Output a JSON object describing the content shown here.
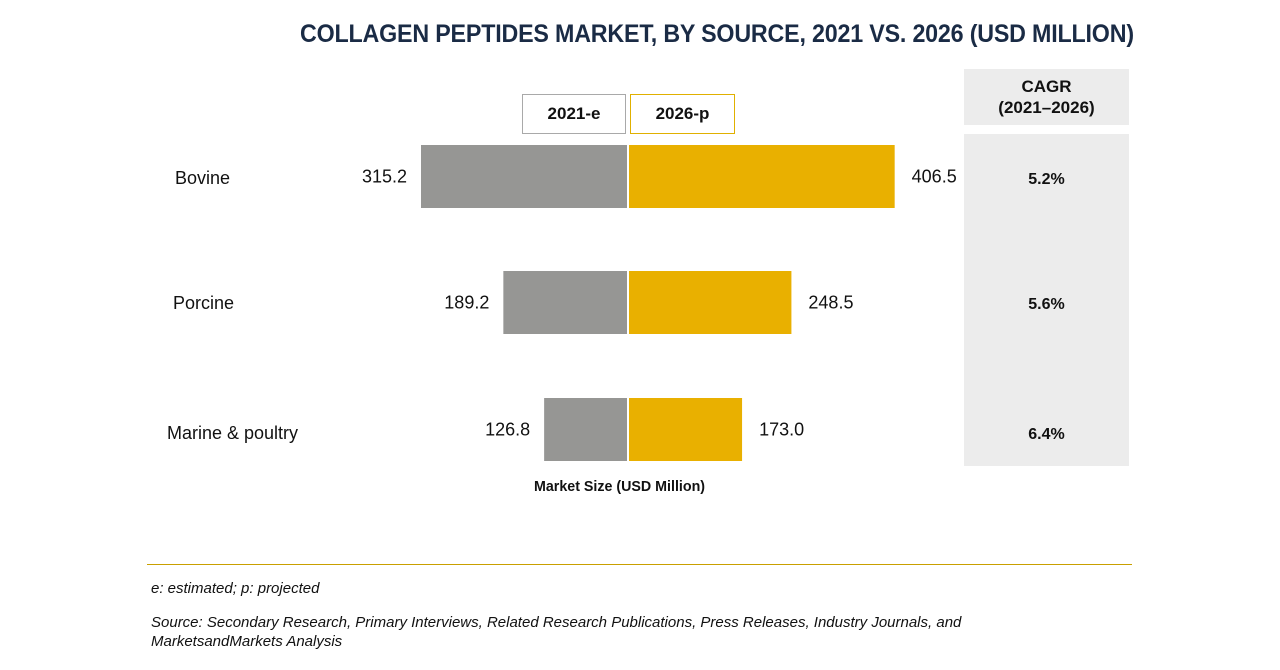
{
  "chart_data": {
    "type": "bar",
    "orientation": "horizontal-butterfly",
    "title": "COLLAGEN PEPTIDES MARKET, BY SOURCE, 2021 VS. 2026 (USD MILLION)",
    "categories": [
      "Bovine",
      "Porcine",
      "Marine & poultry"
    ],
    "series": [
      {
        "name": "2021-e",
        "values": [
          315.2,
          189.2,
          126.8
        ],
        "labels": [
          "315.2",
          "189.2",
          "126.8"
        ],
        "color": "#969694"
      },
      {
        "name": "2026-p",
        "values": [
          406.5,
          248.5,
          173.0
        ],
        "labels": [
          "406.5",
          "248.5",
          "173.0"
        ],
        "color": "#e9b000"
      }
    ],
    "xlabel": "Market Size (USD Million)",
    "ylabel": "",
    "cagr": {
      "header_line1": "CAGR",
      "header_line2": "(2021–2026)",
      "values": [
        "5.2%",
        "5.6%",
        "6.4%"
      ]
    }
  },
  "footer": {
    "note": "e: estimated; p: projected",
    "source_line1": "Source: Secondary Research, Primary Interviews, Related Research Publications, Press Releases, Industry Journals, and",
    "source_line2": "MarketsandMarkets Analysis"
  }
}
